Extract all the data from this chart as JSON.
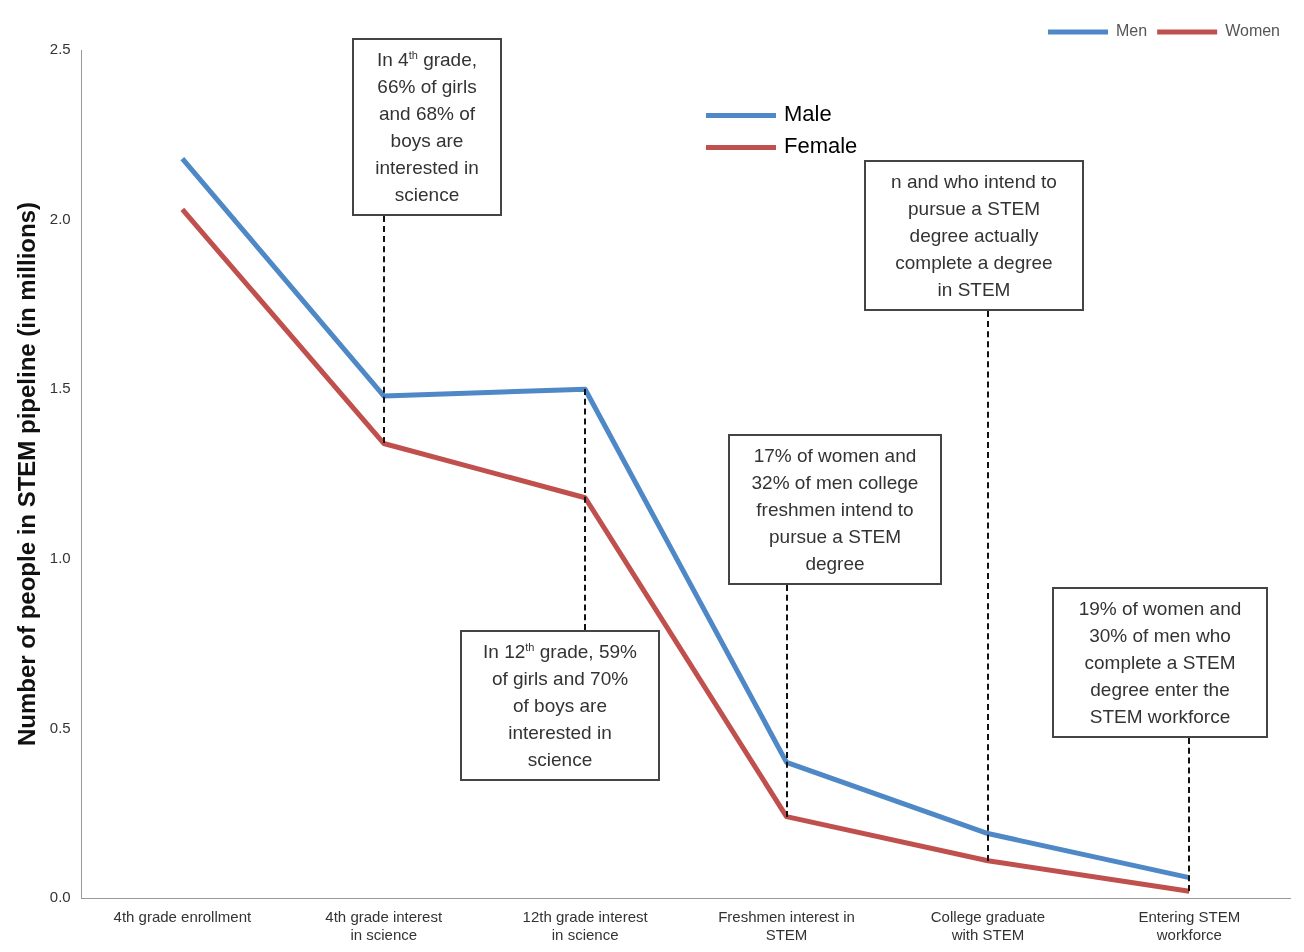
{
  "chart_data": {
    "type": "line",
    "ylabel": "Number of people in STEM pipeline (in millions)",
    "categories": [
      "4th grade enrollment",
      "4th grade interest in science",
      "12th grade interest in science",
      "Freshmen interest in STEM",
      "College graduate with STEM",
      "Entering STEM workforce"
    ],
    "series": [
      {
        "name": "Men",
        "color": "#4f88c6",
        "values": [
          2.18,
          1.48,
          1.5,
          0.4,
          0.19,
          0.06
        ]
      },
      {
        "name": "Women",
        "color": "#c0504d",
        "values": [
          2.03,
          1.34,
          1.18,
          0.24,
          0.11,
          0.02
        ]
      }
    ],
    "ylim": [
      0,
      2.5
    ],
    "yticks": [
      {
        "value": 0,
        "label": "0.0"
      },
      {
        "value": 0.5,
        "label": "0.5"
      },
      {
        "value": 1,
        "label": "1.0"
      },
      {
        "value": 1.5,
        "label": "1.5"
      },
      {
        "value": 2,
        "label": "2.0"
      },
      {
        "value": 2.5,
        "label": "2.5"
      }
    ],
    "grid": false,
    "legend": "top right",
    "marker": "none",
    "line_style": "solid",
    "annotations": [
      {
        "text": "In 4$^{th}$ grade, 66% of girls and 68% of boys are interested in science",
        "x": "4th grade interest in science",
        "y": 1.34
      },
      {
        "text": "In 12$^{th}$ grade, 59% of girls and 70% of boys are interested in science",
        "x": "12th grade interest in science",
        "y": 1.5
      },
      {
        "text": "17% of women and 32% of men college freshmen intend to pursue a STEM degree",
        "x": "Freshmen interest in STEM",
        "y": 0.24
      },
      {
        "text": "n and who intend to pursue a STEM degree actually complete a degree in STEM",
        "x": "College graduate with STEM",
        "y": 0.11
      },
      {
        "text": "19% of women and 30% of men who complete a STEM degree enter the STEM workforce",
        "x": "Entering STEM workforce",
        "y": 0.02
      },
      "Male",
      "Female"
    ]
  }
}
